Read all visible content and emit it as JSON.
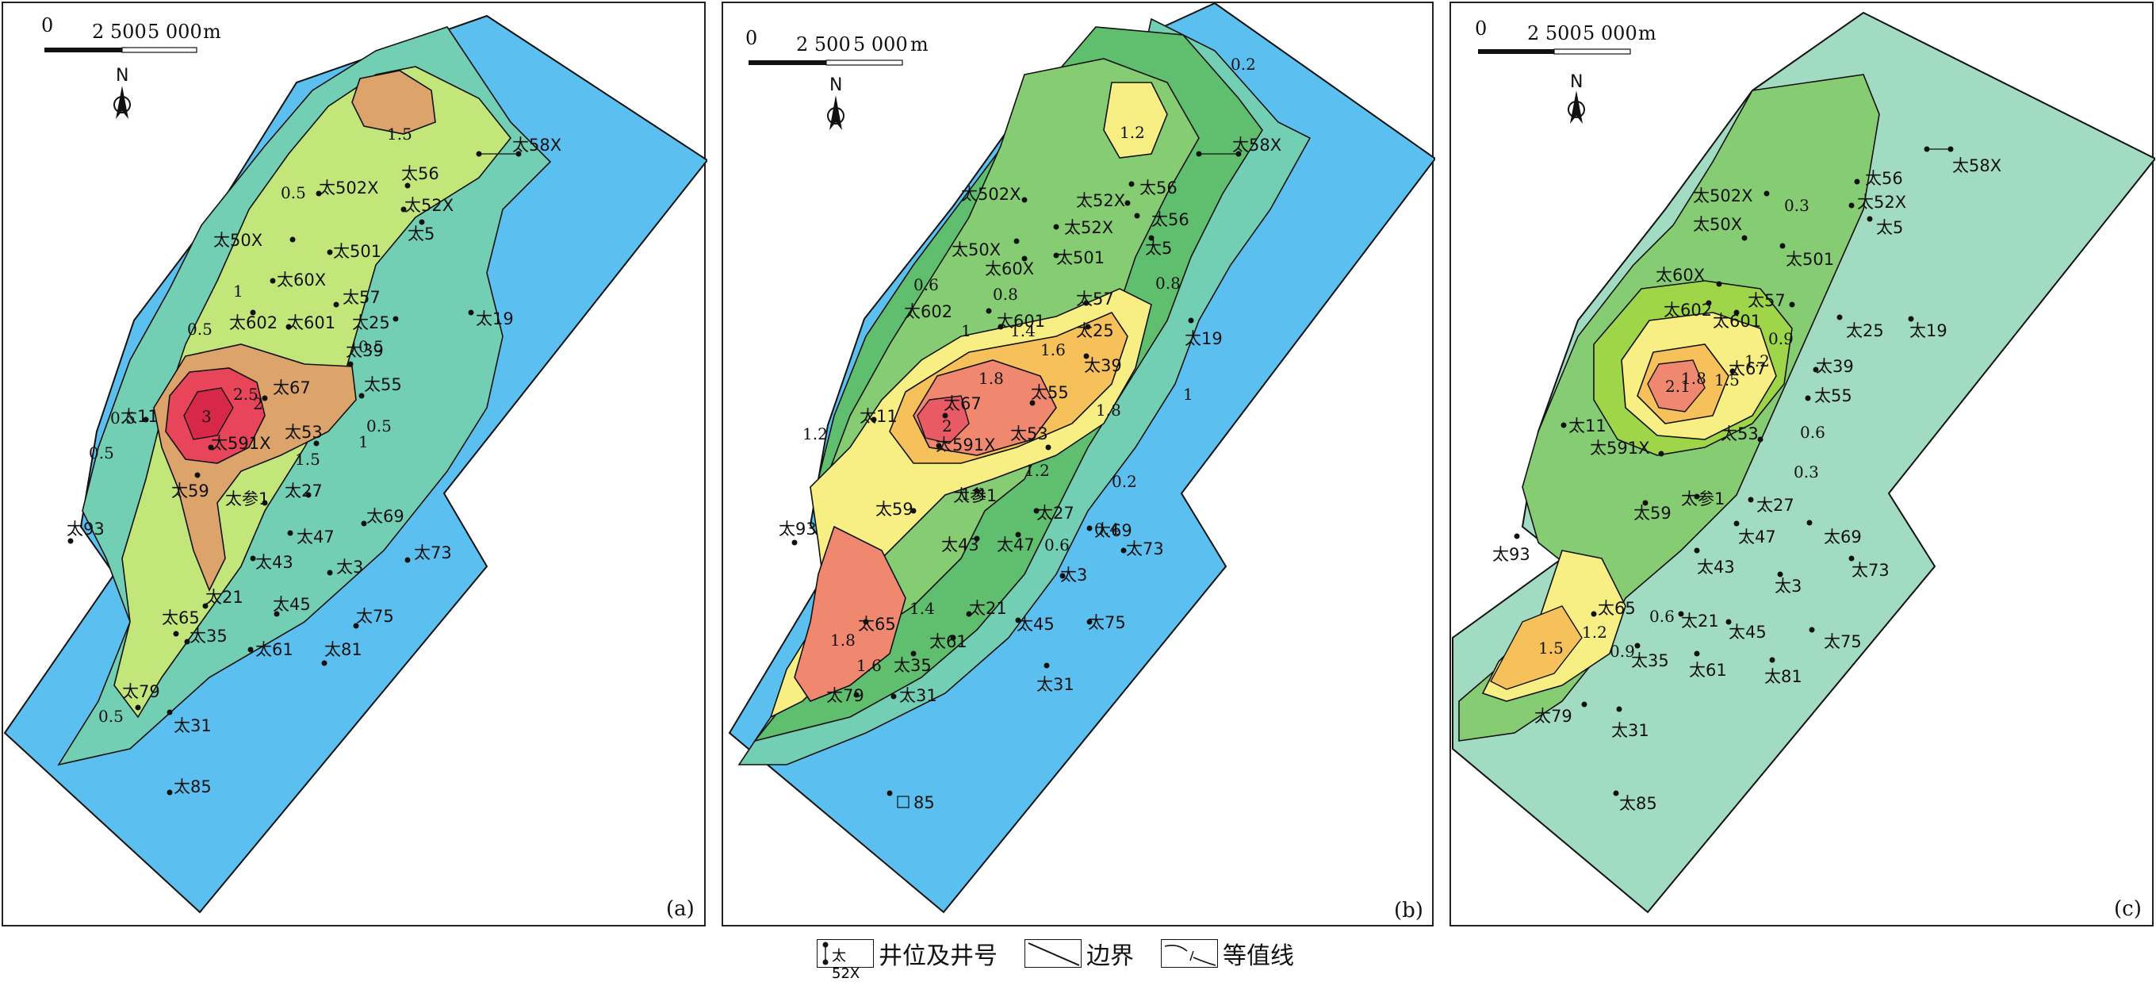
{
  "scale_bar": {
    "label_0": "0",
    "label_2500": "2 500",
    "label_5000": "5 000",
    "unit": "m"
  },
  "north_label": "N",
  "colors": {
    "blue_bg": "#5bc0f0",
    "teal": "#72cfb4",
    "light_green": "#c2e67a",
    "tan": "#dca36a",
    "red": "#e8455b",
    "green1": "#5fbf6e",
    "green2": "#86cc72",
    "yellow": "#f7ef83",
    "orange": "#f6c05a",
    "salmon": "#f08870",
    "mint": "#a1dcc2",
    "lime": "#9fd548",
    "line": "#111111"
  },
  "panels": [
    {
      "label": "(a)",
      "contour_labels": [
        "1.5",
        "0.5",
        "0.5",
        "1",
        "0.5",
        "2",
        "2.5",
        "3",
        "1.5",
        "1",
        "0.5",
        "0.5",
        "0.5",
        "0.5"
      ],
      "wells": [
        "太58X",
        "太56",
        "太502X",
        "太52X",
        "太5",
        "太50X",
        "太501",
        "太60X",
        "太57",
        "太602",
        "太601",
        "太25",
        "太19",
        "太39",
        "太55",
        "太67",
        "太11",
        "太591X",
        "太53",
        "太59",
        "太参1",
        "太27",
        "太93",
        "太69",
        "太47",
        "太73",
        "太43",
        "太3",
        "太21",
        "太45",
        "太75",
        "太65",
        "太35",
        "太61",
        "太81",
        "太79",
        "太31",
        "太85"
      ]
    },
    {
      "label": "(b)",
      "contour_labels": [
        "0.2",
        "1.2",
        "0.6",
        "0.8",
        "1",
        "1.4",
        "1.6",
        "1.8",
        "1.8",
        "2",
        "1.2",
        "1.4",
        "0.6",
        "0.4",
        "0.2",
        "0.8",
        "1",
        "1.8",
        "1.6",
        "1.4",
        "1.2"
      ],
      "wells": [
        "太58X",
        "太502X",
        "太52X",
        "太56",
        "太52X",
        "太56",
        "太50X",
        "太5",
        "太60X",
        "太501",
        "太602",
        "太601",
        "太57",
        "太25",
        "太19",
        "太39",
        "太67",
        "太55",
        "太11",
        "太591X",
        "太53",
        "太参1",
        "太59",
        "太27",
        "太93",
        "太69",
        "太43",
        "太47",
        "太73",
        "太3",
        "太21",
        "太45",
        "太75",
        "太65",
        "太61",
        "太35",
        "太31",
        "太79",
        "太31",
        "85"
      ]
    },
    {
      "label": "(c)",
      "contour_labels": [
        "0.3",
        "0.9",
        "1.2",
        "1.5",
        "1.8",
        "2.1",
        "0.3",
        "0.6",
        "0.6",
        "0.9",
        "1.2",
        "1.5"
      ],
      "wells": [
        "太58X",
        "太56",
        "太502X",
        "太52X",
        "太50X",
        "太5",
        "太501",
        "太60X",
        "太57",
        "太602",
        "太601",
        "太25",
        "太19",
        "太67",
        "太39",
        "太55",
        "太11",
        "太591X",
        "太53",
        "太参1",
        "太59",
        "太27",
        "太47",
        "太69",
        "太93",
        "太43",
        "太73",
        "太3",
        "太21",
        "太45",
        "太75",
        "太65",
        "太35",
        "太61",
        "太81",
        "太79",
        "太31",
        "太85"
      ]
    }
  ],
  "legend": {
    "sample_well": "太52X",
    "well_text": "井位及井号",
    "boundary_text": "边界",
    "contour_text": "等值线"
  }
}
